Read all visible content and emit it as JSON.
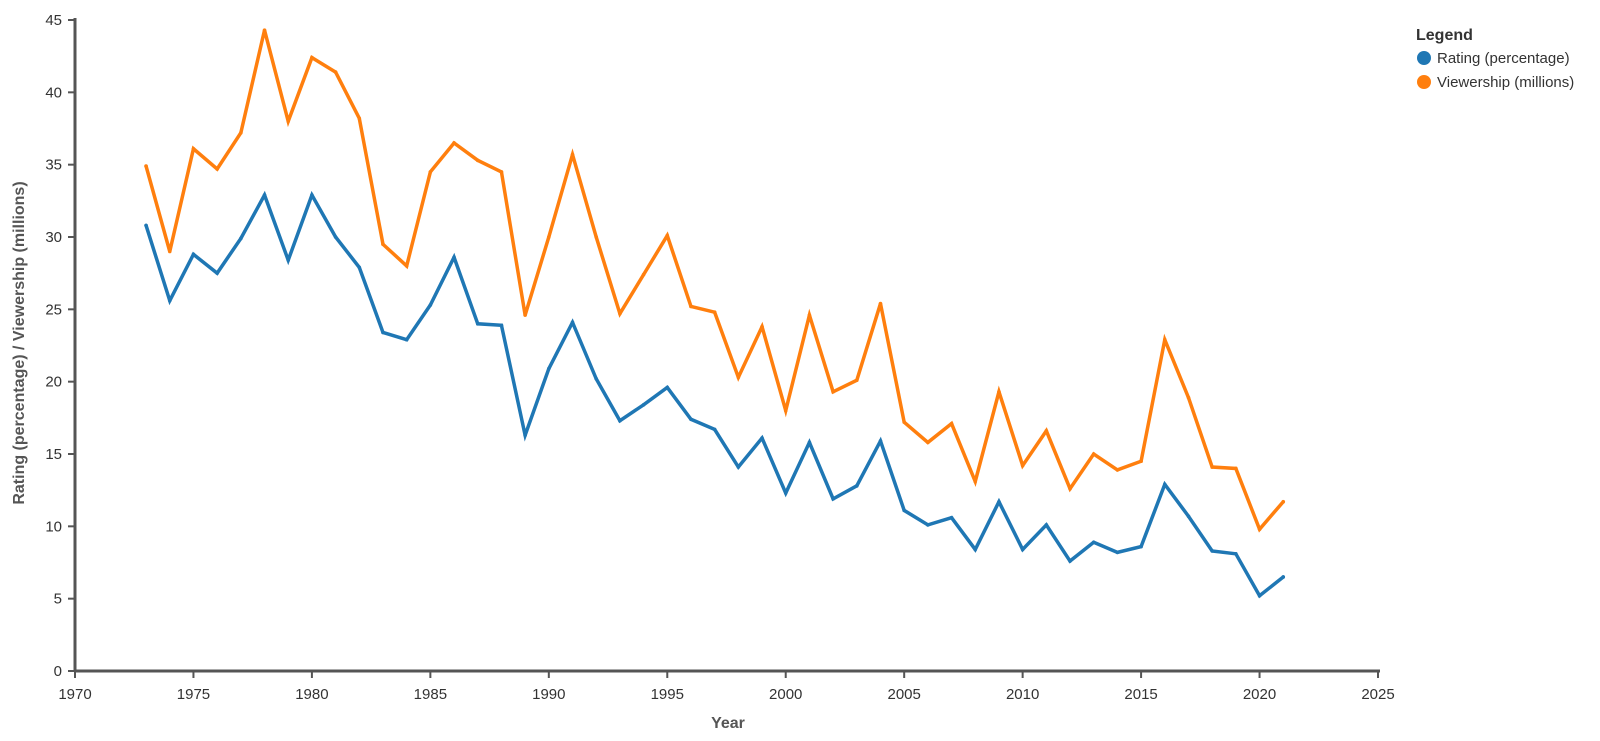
{
  "chart_data": {
    "type": "line",
    "title": "",
    "xlabel": "Year",
    "ylabel": "Rating (percentage) / Viewership (millions)",
    "xlim": [
      1970,
      2025
    ],
    "ylim": [
      0,
      45
    ],
    "x_ticks": [
      "1970",
      "1975",
      "1980",
      "1985",
      "1990",
      "1995",
      "2000",
      "2005",
      "2010",
      "2015",
      "2020",
      "2025"
    ],
    "y_ticks": [
      "0",
      "5",
      "10",
      "15",
      "20",
      "25",
      "30",
      "35",
      "40",
      "45"
    ],
    "grid": false,
    "legend": {
      "title": "Legend",
      "position": "top-right"
    },
    "x": [
      1973,
      1974,
      1975,
      1976,
      1977,
      1978,
      1979,
      1980,
      1981,
      1982,
      1983,
      1984,
      1985,
      1986,
      1987,
      1988,
      1989,
      1990,
      1991,
      1992,
      1993,
      1994,
      1995,
      1996,
      1997,
      1998,
      1999,
      2000,
      2001,
      2002,
      2003,
      2004,
      2005,
      2006,
      2007,
      2008,
      2009,
      2010,
      2011,
      2012,
      2013,
      2014,
      2015,
      2016,
      2017,
      2018,
      2019,
      2020,
      2021
    ],
    "series": [
      {
        "name": "Rating (percentage)",
        "color": "#1f77b4",
        "values": [
          30.8,
          25.6,
          28.8,
          27.5,
          29.9,
          32.9,
          28.4,
          32.9,
          30.0,
          27.9,
          23.4,
          22.9,
          25.3,
          28.6,
          24.0,
          23.9,
          16.3,
          20.9,
          24.1,
          20.2,
          17.3,
          18.4,
          19.6,
          17.4,
          16.7,
          14.1,
          16.1,
          12.3,
          15.8,
          11.9,
          12.8,
          15.9,
          11.1,
          10.1,
          10.6,
          8.4,
          11.7,
          8.4,
          10.1,
          7.6,
          8.9,
          8.2,
          8.6,
          12.9,
          10.7,
          8.3,
          8.1,
          5.2,
          6.5
        ]
      },
      {
        "name": "Viewership (millions)",
        "color": "#ff7f0e",
        "values": [
          34.9,
          29.0,
          36.1,
          34.7,
          37.2,
          44.3,
          38.0,
          42.4,
          41.4,
          38.2,
          29.5,
          28.0,
          34.5,
          36.5,
          35.3,
          34.5,
          24.6,
          30.0,
          35.7,
          30.0,
          24.7,
          27.4,
          30.1,
          25.2,
          24.8,
          20.3,
          23.8,
          18.0,
          24.6,
          19.3,
          20.1,
          25.4,
          17.2,
          15.8,
          17.1,
          13.1,
          19.3,
          14.2,
          16.6,
          12.6,
          15.0,
          13.9,
          14.5,
          22.9,
          18.9,
          14.1,
          14.0,
          9.8,
          11.7
        ]
      }
    ]
  }
}
